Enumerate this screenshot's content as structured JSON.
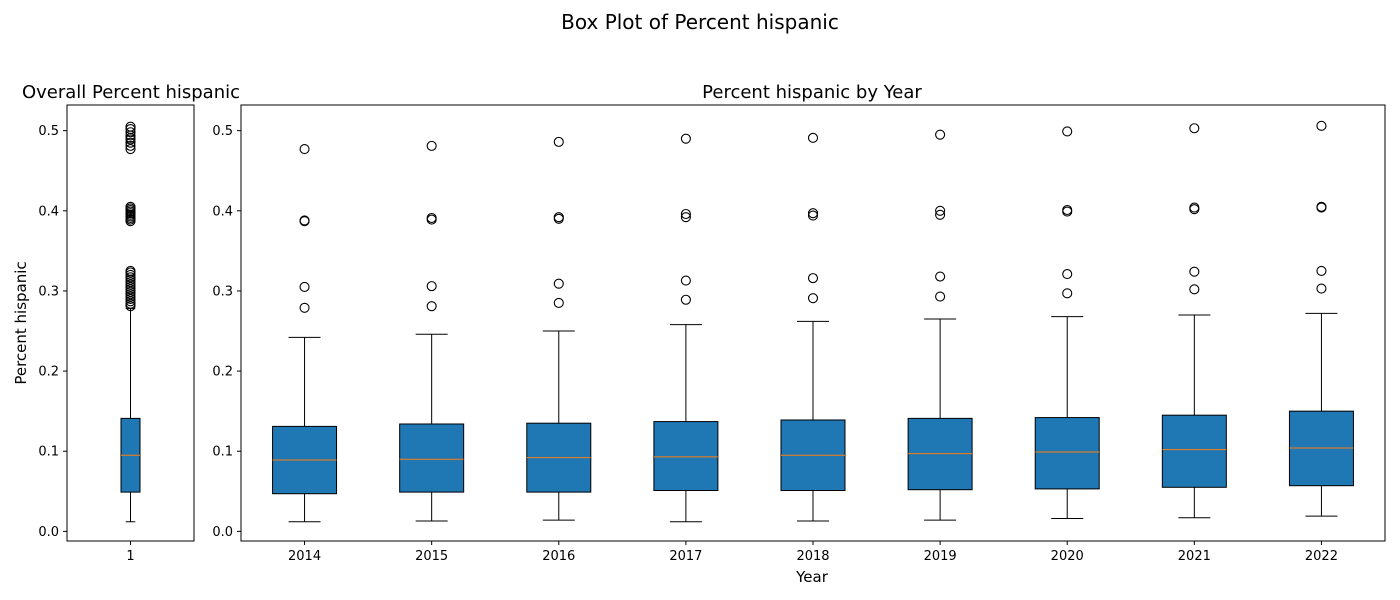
{
  "figure": {
    "title": "Box Plot of Percent hispanic"
  },
  "chart_data": [
    {
      "type": "boxplot",
      "title": "Overall Percent hispanic",
      "xlabel": "",
      "ylabel": "Percent hispanic",
      "categories": [
        "1"
      ],
      "ylim": [
        -0.012,
        0.532
      ],
      "yticks": [
        "0.0",
        "0.1",
        "0.2",
        "0.3",
        "0.4",
        "0.5"
      ],
      "grid": false,
      "box_color": "#1f77b4",
      "median_color": "#ff7f0e",
      "boxes": [
        {
          "label": "1",
          "whislo": 0.012,
          "q1": 0.049,
          "med": 0.095,
          "q3": 0.141,
          "whishi": 0.278,
          "fliers": [
            0.281,
            0.284,
            0.287,
            0.29,
            0.293,
            0.296,
            0.299,
            0.302,
            0.305,
            0.308,
            0.311,
            0.314,
            0.317,
            0.32,
            0.323,
            0.325,
            0.387,
            0.389,
            0.391,
            0.393,
            0.395,
            0.397,
            0.399,
            0.401,
            0.403,
            0.405,
            0.477,
            0.481,
            0.485,
            0.489,
            0.491,
            0.494,
            0.498,
            0.502,
            0.505
          ]
        }
      ]
    },
    {
      "type": "boxplot",
      "title": "Percent hispanic by Year",
      "xlabel": "Year",
      "ylabel": "",
      "categories": [
        "2014",
        "2015",
        "2016",
        "2017",
        "2018",
        "2019",
        "2020",
        "2021",
        "2022"
      ],
      "ylim": [
        -0.012,
        0.532
      ],
      "yticks": [
        "0.0",
        "0.1",
        "0.2",
        "0.3",
        "0.4",
        "0.5"
      ],
      "grid": false,
      "box_color": "#1f77b4",
      "median_color": "#ff7f0e",
      "boxes": [
        {
          "label": "2014",
          "whislo": 0.012,
          "q1": 0.047,
          "med": 0.089,
          "q3": 0.131,
          "whishi": 0.242,
          "fliers": [
            0.279,
            0.305,
            0.387,
            0.388,
            0.477
          ]
        },
        {
          "label": "2015",
          "whislo": 0.013,
          "q1": 0.049,
          "med": 0.09,
          "q3": 0.134,
          "whishi": 0.246,
          "fliers": [
            0.281,
            0.306,
            0.389,
            0.391,
            0.481
          ]
        },
        {
          "label": "2016",
          "whislo": 0.014,
          "q1": 0.049,
          "med": 0.092,
          "q3": 0.135,
          "whishi": 0.25,
          "fliers": [
            0.285,
            0.309,
            0.39,
            0.392,
            0.486
          ]
        },
        {
          "label": "2017",
          "whislo": 0.012,
          "q1": 0.051,
          "med": 0.093,
          "q3": 0.137,
          "whishi": 0.258,
          "fliers": [
            0.289,
            0.313,
            0.392,
            0.396,
            0.49
          ]
        },
        {
          "label": "2018",
          "whislo": 0.013,
          "q1": 0.051,
          "med": 0.095,
          "q3": 0.139,
          "whishi": 0.262,
          "fliers": [
            0.291,
            0.316,
            0.394,
            0.397,
            0.491
          ]
        },
        {
          "label": "2019",
          "whislo": 0.014,
          "q1": 0.052,
          "med": 0.097,
          "q3": 0.141,
          "whishi": 0.265,
          "fliers": [
            0.293,
            0.318,
            0.395,
            0.4,
            0.495
          ]
        },
        {
          "label": "2020",
          "whislo": 0.016,
          "q1": 0.053,
          "med": 0.099,
          "q3": 0.142,
          "whishi": 0.268,
          "fliers": [
            0.297,
            0.321,
            0.399,
            0.401,
            0.499
          ]
        },
        {
          "label": "2021",
          "whislo": 0.017,
          "q1": 0.055,
          "med": 0.102,
          "q3": 0.145,
          "whishi": 0.27,
          "fliers": [
            0.302,
            0.324,
            0.402,
            0.404,
            0.503
          ]
        },
        {
          "label": "2022",
          "whislo": 0.019,
          "q1": 0.057,
          "med": 0.104,
          "q3": 0.15,
          "whishi": 0.272,
          "fliers": [
            0.303,
            0.325,
            0.404,
            0.405,
            0.506
          ]
        }
      ]
    }
  ]
}
